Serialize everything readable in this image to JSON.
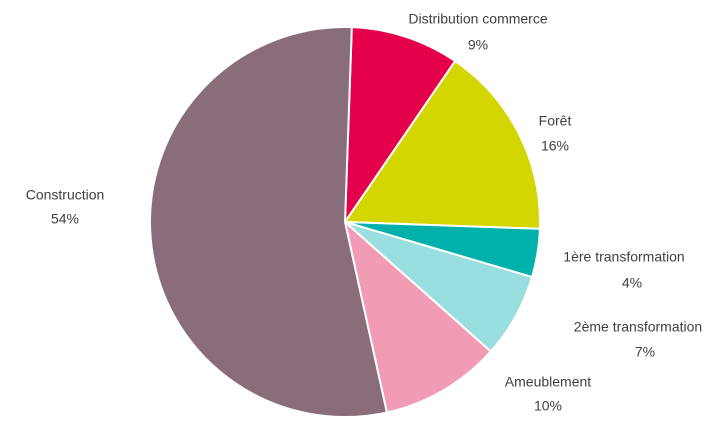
{
  "chart_data": {
    "type": "pie",
    "categories": [
      "Distribution commerce",
      "Forêt",
      "1ère transformation",
      "2ème transformation",
      "Ameublement",
      "Construction"
    ],
    "values": [
      9,
      16,
      4,
      7,
      10,
      54
    ],
    "value_labels": [
      "9%",
      "16%",
      "4%",
      "7%",
      "10%",
      "54%"
    ],
    "colors": [
      "#e4004b",
      "#d4d600",
      "#00b0aa",
      "#99dfdf",
      "#f29bb4",
      "#8a6d7a"
    ]
  }
}
